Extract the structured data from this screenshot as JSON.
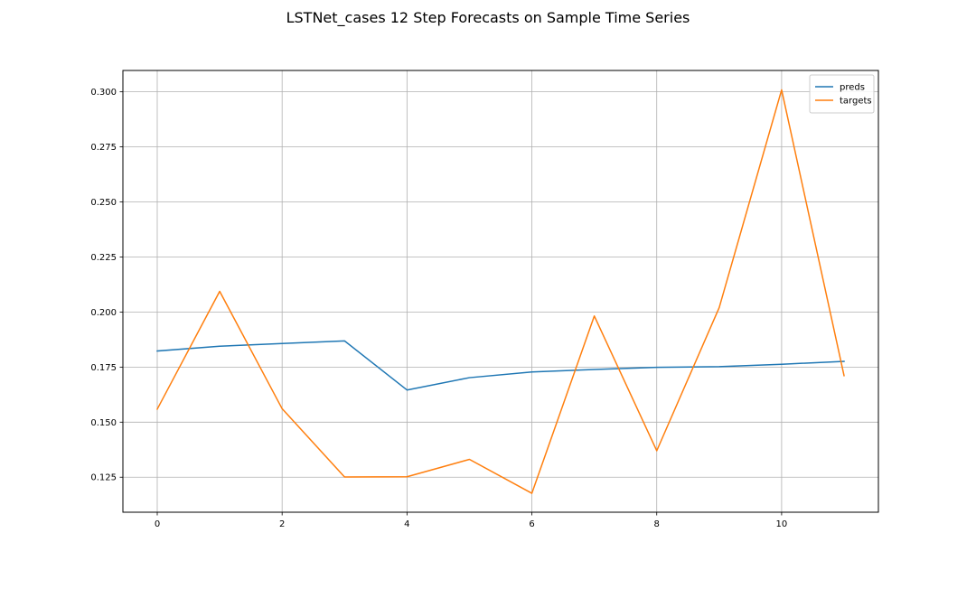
{
  "chart_data": {
    "type": "line",
    "title": "LSTNet_cases 12 Step Forecasts on Sample Time Series",
    "xlabel": "",
    "ylabel": "",
    "x": [
      0,
      1,
      2,
      3,
      4,
      5,
      6,
      7,
      8,
      9,
      10,
      11
    ],
    "xlim": [
      -0.55,
      11.55
    ],
    "ylim": [
      0.1091,
      0.3097
    ],
    "xticks": [
      0,
      2,
      4,
      6,
      8,
      10
    ],
    "xtick_labels": [
      "0",
      "2",
      "4",
      "6",
      "8",
      "10"
    ],
    "yticks": [
      0.125,
      0.15,
      0.175,
      0.2,
      0.225,
      0.25,
      0.275,
      0.3
    ],
    "ytick_labels": [
      "0.125",
      "0.150",
      "0.175",
      "0.200",
      "0.225",
      "0.250",
      "0.275",
      "0.300"
    ],
    "grid": true,
    "legend_position": "top-right",
    "series": [
      {
        "name": "preds",
        "color": "#1f77b4",
        "values": [
          0.1823,
          0.1845,
          0.1857,
          0.1869,
          0.1646,
          0.1702,
          0.1728,
          0.1739,
          0.1749,
          0.1752,
          0.1763,
          0.1776
        ]
      },
      {
        "name": "targets",
        "color": "#ff7f0e",
        "values": [
          0.1559,
          0.2094,
          0.1561,
          0.1251,
          0.1252,
          0.1331,
          0.1177,
          0.1982,
          0.137,
          0.202,
          0.3009,
          0.1711
        ]
      }
    ]
  }
}
